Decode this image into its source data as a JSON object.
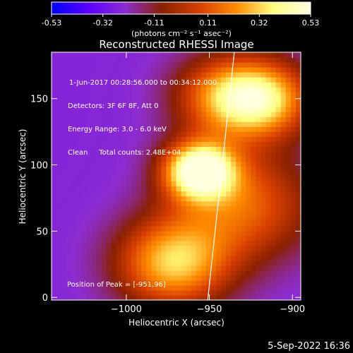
{
  "colorbar": {
    "ticks": [
      "-0.53",
      "-0.32",
      "-0.11",
      "0.11",
      "0.32",
      "0.53"
    ],
    "tick_values": [
      -0.53,
      -0.32,
      -0.11,
      0.11,
      0.32,
      0.53
    ],
    "range": [
      -0.53,
      0.53
    ],
    "units_label": "(photons cm⁻² s⁻¹ asec⁻²)",
    "colors": [
      "#0000ff",
      "#5a00ff",
      "#8c2cd0",
      "#8a2000",
      "#d94000",
      "#ff8c00",
      "#ffff80",
      "#ffffe0"
    ]
  },
  "chart_data": {
    "type": "heatmap",
    "title": "Reconstructed RHESSI Image",
    "xlabel": "Heliocentric X (arcsec)",
    "ylabel": "Heliocentric Y (arcsec)",
    "xlim": [
      -1045,
      -895
    ],
    "ylim": [
      -2,
      185
    ],
    "x_ticks": [
      -1000,
      -950,
      -900
    ],
    "x_tick_labels": [
      "−1000",
      "−950",
      "−900"
    ],
    "y_ticks": [
      0,
      50,
      100,
      150
    ],
    "y_tick_labels": [
      "0",
      "50",
      "100",
      "150"
    ],
    "peak": {
      "x": -951,
      "y": 96,
      "label": "Position of Peak = [-951,96]"
    },
    "limb_line": {
      "x_bottom": -951,
      "x_top": -935
    },
    "sources": [
      {
        "x": -956,
        "y": 96,
        "intensity": 0.53,
        "spread": 15
      },
      {
        "x": -972,
        "y": 26,
        "intensity": 0.3,
        "spread": 24
      },
      {
        "x": -916,
        "y": 150,
        "intensity": 0.24,
        "spread": 20
      },
      {
        "x": -940,
        "y": 152,
        "intensity": 0.2,
        "spread": 22
      },
      {
        "x": -930,
        "y": 70,
        "intensity": 0.14,
        "spread": 30
      }
    ],
    "background_value": -0.25,
    "annotations": [
      "1-Jun-2017 00:28:56.000 to 00:34:12.000",
      "Detectors: 3F 6F 8F, Att 0",
      "Energy Range: 3.0 - 6.0 keV",
      "Clean     Total counts: 2.48E+04"
    ]
  },
  "footer": {
    "date": "5-Sep-2022 16:36"
  }
}
